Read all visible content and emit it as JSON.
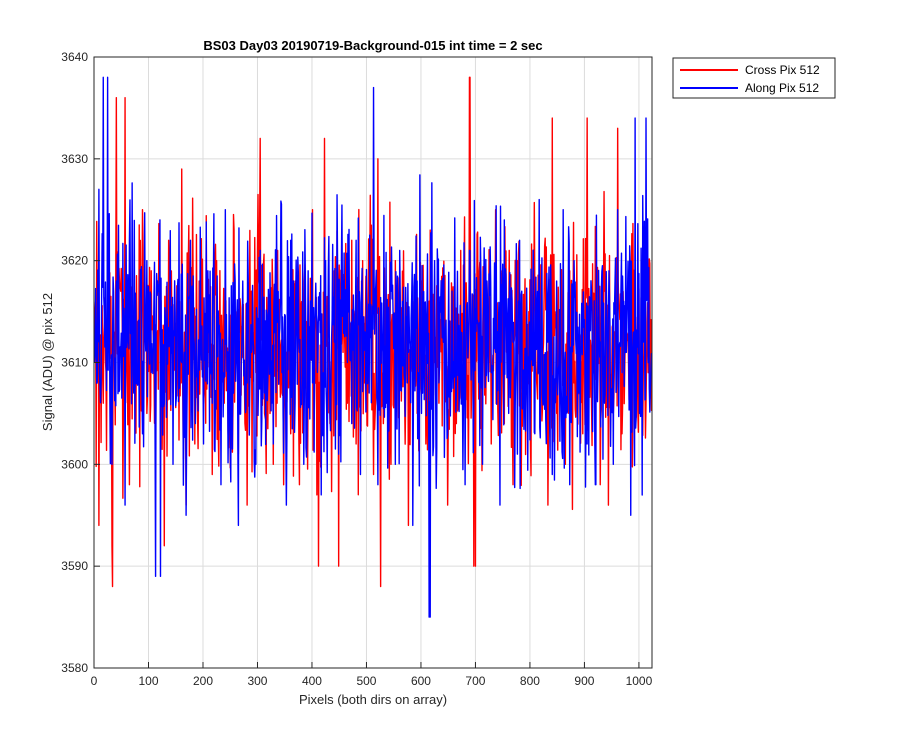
{
  "chart_data": {
    "type": "line",
    "title": "BS03 Day03 20190719-Background-015 int time = 2 sec",
    "xlabel": "Pixels (both dirs on array)",
    "ylabel": "Signal (ADU) @ pix 512",
    "xlim": [
      0,
      1024
    ],
    "ylim": [
      3580,
      3640
    ],
    "x_ticks": [
      0,
      100,
      200,
      300,
      400,
      500,
      600,
      700,
      800,
      900,
      1000
    ],
    "y_ticks": [
      3580,
      3590,
      3600,
      3610,
      3620,
      3630,
      3640
    ],
    "grid": true,
    "legend_position": "outside top-right",
    "x": "pixel index 1..1024",
    "series": [
      {
        "name": "Cross Pix 512",
        "color": "#ff0000",
        "summary": {
          "mean": 3612,
          "min": 3588,
          "max": 3638,
          "n_points": 1024
        },
        "peaks": [
          [
            34,
            3588
          ],
          [
            41,
            3636
          ],
          [
            412,
            3590
          ],
          [
            423,
            3632
          ],
          [
            526,
            3588
          ],
          [
            690,
            3638
          ],
          [
            700,
            3590
          ],
          [
            905,
            3634
          ]
        ],
        "values_sampled_every_8": [
          3612,
          3594,
          3606,
          3621,
          3592,
          3604,
          3617,
          3636,
          3598,
          3611,
          3608,
          3625,
          3605,
          3619,
          3600,
          3613,
          3592,
          3622,
          3607,
          3610,
          3629,
          3596,
          3614,
          3602,
          3618,
          3606,
          3611,
          3599,
          3620,
          3604,
          3615,
          3608,
          3623,
          3601,
          3612,
          3596,
          3617,
          3609,
          3632,
          3605,
          3614,
          3600,
          3621,
          3607,
          3611,
          3603,
          3618,
          3598,
          3612,
          3609,
          3625,
          3597,
          3610,
          3615,
          3604,
          3619,
          3590,
          3611,
          3606,
          3622,
          3602,
          3613,
          3608,
          3617,
          3599,
          3630,
          3606,
          3612,
          3600,
          3620,
          3609,
          3614,
          3594,
          3611,
          3605,
          3618,
          3602,
          3623,
          3610,
          3606,
          3612,
          3596,
          3616,
          3604,
          3621,
          3608,
          3638,
          3590,
          3611,
          3606,
          3618,
          3602,
          3625,
          3610,
          3604,
          3613,
          3598,
          3620,
          3607,
          3611,
          3602,
          3617,
          3609,
          3612,
          3596,
          3634,
          3605,
          3614,
          3600,
          3619,
          3608,
          3611,
          3603,
          3622,
          3606,
          3612,
          3598,
          3617,
          3610,
          3605,
          3633,
          3603,
          3612,
          3608,
          3613,
          3607,
          3611,
          3609
        ]
      },
      {
        "name": "Along Pix 512",
        "color": "#0000ff",
        "summary": {
          "mean": 3612,
          "min": 3585,
          "max": 3638,
          "n_points": 1024
        },
        "peaks": [
          [
            17,
            3638
          ],
          [
            122,
            3589
          ],
          [
            513,
            3637
          ],
          [
            615,
            3585
          ],
          [
            920,
            3598
          ],
          [
            1013,
            3634
          ]
        ],
        "values_sampled_every_8": [
          3610,
          3627,
          3605,
          3638,
          3600,
          3618,
          3611,
          3596,
          3622,
          3607,
          3614,
          3603,
          3620,
          3609,
          3589,
          3624,
          3606,
          3613,
          3600,
          3617,
          3610,
          3595,
          3622,
          3608,
          3611,
          3602,
          3619,
          3606,
          3614,
          3598,
          3625,
          3605,
          3612,
          3594,
          3618,
          3608,
          3611,
          3600,
          3621,
          3607,
          3613,
          3602,
          3617,
          3609,
          3596,
          3622,
          3606,
          3611,
          3600,
          3619,
          3608,
          3614,
          3597,
          3620,
          3605,
          3612,
          3601,
          3618,
          3610,
          3604,
          3622,
          3599,
          3613,
          3607,
          3637,
          3598,
          3612,
          3606,
          3617,
          3600,
          3621,
          3609,
          3611,
          3594,
          3618,
          3605,
          3613,
          3585,
          3620,
          3608,
          3612,
          3603,
          3617,
          3607,
          3610,
          3598,
          3621,
          3606,
          3613,
          3600,
          3618,
          3609,
          3611,
          3596,
          3624,
          3605,
          3612,
          3601,
          3617,
          3608,
          3610,
          3603,
          3626,
          3606,
          3612,
          3599,
          3618,
          3609,
          3611,
          3598,
          3620,
          3607,
          3614,
          3602,
          3617,
          3598,
          3612,
          3606,
          3619,
          3600,
          3625,
          3609,
          3611,
          3595,
          3634,
          3605,
          3612,
          3610
        ]
      }
    ]
  }
}
